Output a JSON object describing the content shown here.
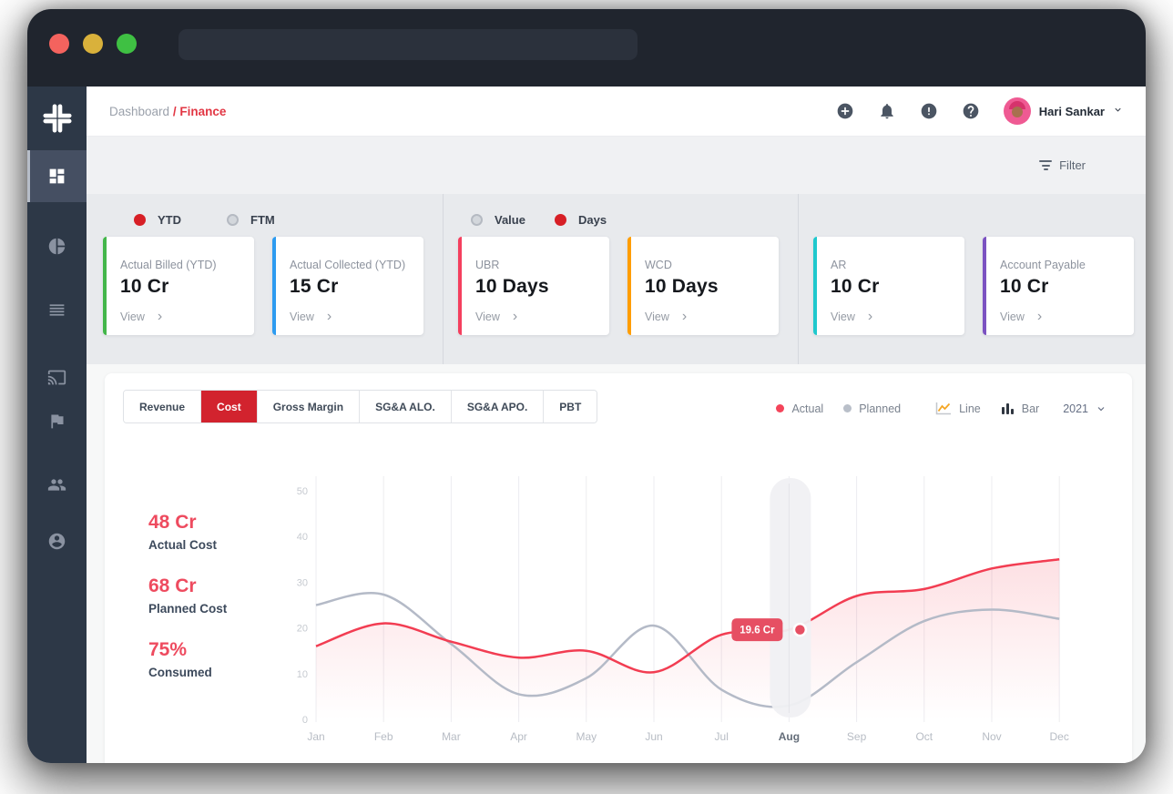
{
  "window": {
    "address_value": ""
  },
  "sidebar": {
    "items": [
      "dashboard",
      "pie-chart",
      "list",
      "cast",
      "flag",
      "users",
      "account"
    ]
  },
  "header": {
    "breadcrumb": {
      "root": "Dashboard",
      "separator": "/",
      "current": "Finance"
    },
    "user": {
      "name": "Hari Sankar"
    }
  },
  "filter_bar": {
    "label": "Filter"
  },
  "kpi": {
    "groups": [
      {
        "radios": [
          {
            "label": "YTD",
            "selected": true
          },
          {
            "label": "FTM",
            "selected": false
          }
        ],
        "cards": [
          {
            "label": "Actual Billed (YTD)",
            "value": "10 Cr",
            "action": "View",
            "arrow": "›",
            "accent": "#43b64a"
          },
          {
            "label": "Actual Collected (YTD)",
            "value": "15 Cr",
            "action": "View",
            "arrow": "›",
            "accent": "#2d9bf0"
          }
        ]
      },
      {
        "radios": [
          {
            "label": "Value",
            "selected": false
          },
          {
            "label": "Days",
            "selected": true
          }
        ],
        "cards": [
          {
            "label": "UBR",
            "value": "10 Days",
            "action": "View",
            "arrow": "›",
            "accent": "#f43f5e"
          },
          {
            "label": "WCD",
            "value": "10 Days",
            "action": "View",
            "arrow": "›",
            "accent": "#ff9d00"
          }
        ]
      },
      {
        "radios": [],
        "cards": [
          {
            "label": "AR",
            "value": "10 Cr",
            "action": "View",
            "arrow": "›",
            "accent": "#1fc8cd"
          },
          {
            "label": "Account Payable",
            "value": "10 Cr",
            "action": "View",
            "arrow": "›",
            "accent": "#7b52c1"
          }
        ]
      }
    ]
  },
  "chart_card": {
    "tabs": [
      {
        "label": "Revenue",
        "active": false
      },
      {
        "label": "Cost",
        "active": true
      },
      {
        "label": "Gross Margin",
        "active": false
      },
      {
        "label": "SG&A ALO.",
        "active": false
      },
      {
        "label": "SG&A APO.",
        "active": false
      },
      {
        "label": "PBT",
        "active": false
      }
    ],
    "legend": {
      "actual": "Actual",
      "planned": "Planned",
      "line": "Line",
      "bar": "Bar",
      "year": "2021"
    },
    "stats": [
      {
        "value": "48 Cr",
        "label": "Actual Cost"
      },
      {
        "value": "68 Cr",
        "label": "Planned Cost"
      },
      {
        "value": "75%",
        "label": "Consumed"
      }
    ]
  },
  "chart_data": {
    "type": "line",
    "title": "",
    "xlabel": "",
    "ylabel": "",
    "categories": [
      "Jan",
      "Feb",
      "Mar",
      "Apr",
      "May",
      "Jun",
      "Jul",
      "Aug",
      "Sep",
      "Oct",
      "Nov",
      "Dec"
    ],
    "series": [
      {
        "name": "Actual",
        "color": "#f23d52",
        "area": true,
        "values": [
          16,
          21,
          17,
          13.5,
          15,
          10.3,
          18.5,
          19.6,
          27,
          28.5,
          33,
          35
        ]
      },
      {
        "name": "Planned",
        "color": "#b4bac7",
        "area": false,
        "values": [
          25,
          27.3,
          16.5,
          5.5,
          9,
          20.5,
          6.5,
          3,
          12.5,
          21.5,
          24,
          22
        ]
      }
    ],
    "ylim": [
      0,
      50
    ],
    "yticks": [
      0,
      10,
      20,
      30,
      40,
      50
    ],
    "grid": "vertical",
    "legend_position": "top-right",
    "highlight": {
      "category": "Aug",
      "series": "Actual",
      "tooltip": "19.6 Cr"
    }
  },
  "colors": {
    "brand_red": "#e23744",
    "tab_active": "#d2232e",
    "stat_red": "#ee4b5f",
    "tooltip_bg": "#e64f63",
    "sidebar_bg": "#2d3847"
  }
}
